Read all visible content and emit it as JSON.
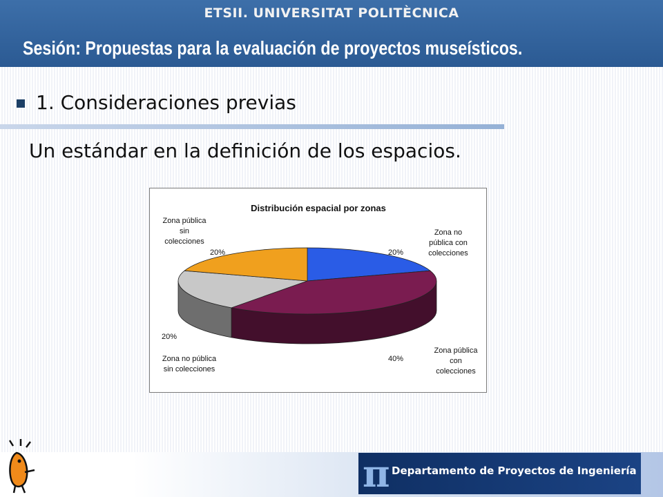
{
  "header": {
    "institution": "ETSII. UNIVERSITAT POLITÈCNICA",
    "session": "Sesión:  Propuestas para la evaluación de proyectos museísticos."
  },
  "content": {
    "heading": "1. Consideraciones previas",
    "subtitle": "Un estándar en la definición de los espacios."
  },
  "footer": {
    "logo_glyph": "π",
    "logo_text": "Departamento de Proyectos de Ingeniería"
  },
  "colors": {
    "header": "#2f5f98",
    "slice_blue": "#2a5ce6",
    "slice_maroon": "#7a1c50",
    "slice_gray": "#c8c8c8",
    "slice_orange": "#f0a01e"
  },
  "chart_data": {
    "type": "pie",
    "title": "Distribución espacial por zonas",
    "categories": [
      "Zona no pública con colecciones",
      "Zona pública con colecciones",
      "Zona  no pública sin colecciones",
      "Zona pública sin colecciones"
    ],
    "values": [
      20,
      40,
      20,
      20
    ],
    "value_labels": [
      "20%",
      "40%",
      "20%",
      "20%"
    ],
    "category_lines": [
      [
        "Zona no",
        "pública con",
        "colecciones"
      ],
      [
        "Zona pública",
        "con",
        "colecciones"
      ],
      [
        "Zona  no pública",
        "sin colecciones"
      ],
      [
        "Zona pública",
        "sin",
        "colecciones"
      ]
    ],
    "colors": [
      "#2a5ce6",
      "#7a1c50",
      "#c8c8c8",
      "#f0a01e"
    ],
    "style": "3d-exploded-pie",
    "legend": "none"
  }
}
